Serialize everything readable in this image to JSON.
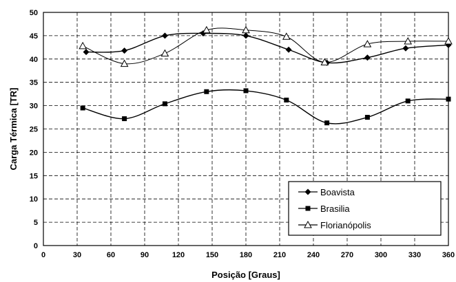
{
  "chart_data": {
    "type": "line",
    "xlabel": "Posição [Graus]",
    "ylabel": "Carga Térmica [TR]",
    "xlim": [
      0,
      360
    ],
    "ylim": [
      0,
      50
    ],
    "x_ticks": [
      0,
      30,
      60,
      90,
      120,
      150,
      180,
      210,
      240,
      270,
      300,
      330,
      360
    ],
    "y_ticks": [
      0,
      5,
      10,
      15,
      20,
      25,
      30,
      35,
      40,
      45,
      50
    ],
    "grid": true,
    "legend_position": "bottom-right",
    "series": [
      {
        "name": "Boavista",
        "marker": "diamond",
        "color": "#000000",
        "x": [
          38,
          72,
          108,
          142,
          180,
          218,
          252,
          288,
          322,
          360
        ],
        "y": [
          41.5,
          41.8,
          45,
          45.5,
          45,
          42,
          39.2,
          40.3,
          42.3,
          43
        ]
      },
      {
        "name": "Brasilia",
        "marker": "square",
        "color": "#000000",
        "x": [
          35,
          72,
          108,
          145,
          180,
          216,
          252,
          288,
          324,
          360
        ],
        "y": [
          29.5,
          27.2,
          30.4,
          33,
          33.2,
          31.2,
          26.3,
          27.5,
          31,
          31.4
        ]
      },
      {
        "name": "Florianópolis",
        "marker": "triangle",
        "color": "#000000",
        "x": [
          35,
          72,
          108,
          145,
          180,
          216,
          250,
          288,
          324,
          360
        ],
        "y": [
          42.8,
          39,
          41.2,
          46.2,
          46.2,
          44.8,
          39.3,
          43.2,
          43.8,
          43.8
        ]
      }
    ]
  }
}
